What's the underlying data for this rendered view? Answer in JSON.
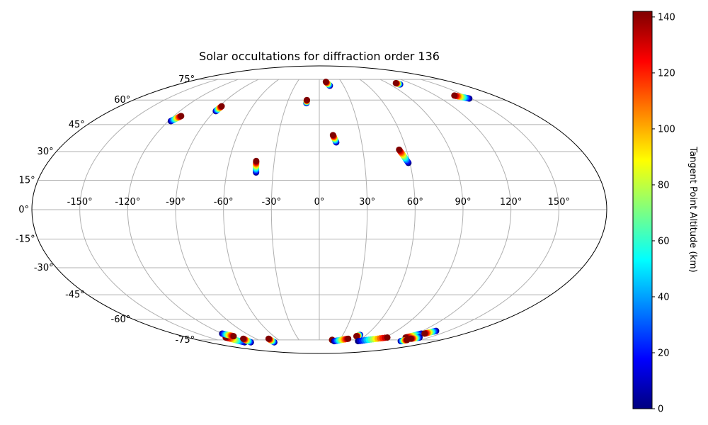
{
  "chart_data": {
    "type": "scatter",
    "projection": "mollweide",
    "title": "Solar occultations for diffraction order 136",
    "xlabel": "",
    "ylabel": "",
    "xlim": [
      -180,
      180
    ],
    "ylim": [
      -90,
      90
    ],
    "grid": true,
    "x_ticks": [
      -150,
      -120,
      -90,
      -60,
      -30,
      0,
      30,
      60,
      90,
      120,
      150
    ],
    "x_tick_labels": [
      "-150°",
      "-120°",
      "-90°",
      "-60°",
      "-30°",
      "0°",
      "30°",
      "60°",
      "90°",
      "120°",
      "150°"
    ],
    "y_ticks": [
      75,
      60,
      45,
      30,
      15,
      0,
      -15,
      -30,
      -45,
      -60,
      -75
    ],
    "y_tick_labels": [
      "75°",
      "60°",
      "45°",
      "30°",
      "15°",
      "0°",
      "-15°",
      "-30°",
      "-45°",
      "-60°",
      "-75°"
    ],
    "colorbar": {
      "label": "Tangent Point Altitude (km)",
      "range": [
        0,
        142
      ],
      "colormap": "jet",
      "ticks": [
        0,
        20,
        40,
        60,
        80,
        100,
        120,
        140
      ],
      "tick_labels": [
        "0",
        "20",
        "40",
        "60",
        "80",
        "100",
        "120",
        "140"
      ]
    },
    "series": [
      {
        "start": [
          -118,
          47
        ],
        "end": [
          -114,
          50
        ]
      },
      {
        "start": [
          -89,
          53
        ],
        "end": [
          -88,
          56
        ]
      },
      {
        "start": [
          -12,
          58
        ],
        "end": [
          -12,
          60
        ]
      },
      {
        "start": [
          13,
          70
        ],
        "end": [
          9,
          73
        ]
      },
      {
        "start": [
          103,
          71
        ],
        "end": [
          101,
          72
        ]
      },
      {
        "start": [
          148,
          61
        ],
        "end": [
          139,
          63
        ]
      },
      {
        "start": [
          12,
          35
        ],
        "end": [
          10,
          39
        ]
      },
      {
        "start": [
          59,
          24
        ],
        "end": [
          55,
          31
        ]
      },
      {
        "start": [
          -41,
          19
        ],
        "end": [
          -42,
          25
        ]
      },
      {
        "start": [
          -121,
          -77
        ],
        "end": [
          -128,
          -73
        ]
      },
      {
        "start": [
          -111,
          -77
        ],
        "end": [
          -108,
          -74
        ]
      },
      {
        "start": [
          -120,
          -70
        ],
        "end": [
          -113,
          -72
        ]
      },
      {
        "start": [
          -73,
          -77
        ],
        "end": [
          -72,
          -74
        ]
      },
      {
        "start": [
          19,
          -75
        ],
        "end": [
          19,
          -75
        ]
      },
      {
        "start": [
          23,
          -76
        ],
        "end": [
          41,
          -74
        ]
      },
      {
        "start": [
          52,
          -71
        ],
        "end": [
          49,
          -72
        ]
      },
      {
        "start": [
          60,
          -76
        ],
        "end": [
          93,
          -73
        ]
      },
      {
        "start": [
          126,
          -70
        ],
        "end": [
          118,
          -73
        ]
      },
      {
        "start": [
          136,
          -68
        ],
        "end": [
          130,
          -70
        ]
      },
      {
        "start": [
          126,
          -76
        ],
        "end": [
          130,
          -75
        ]
      },
      {
        "start": [
          137,
          -73
        ],
        "end": [
          130,
          -74
        ]
      }
    ]
  }
}
